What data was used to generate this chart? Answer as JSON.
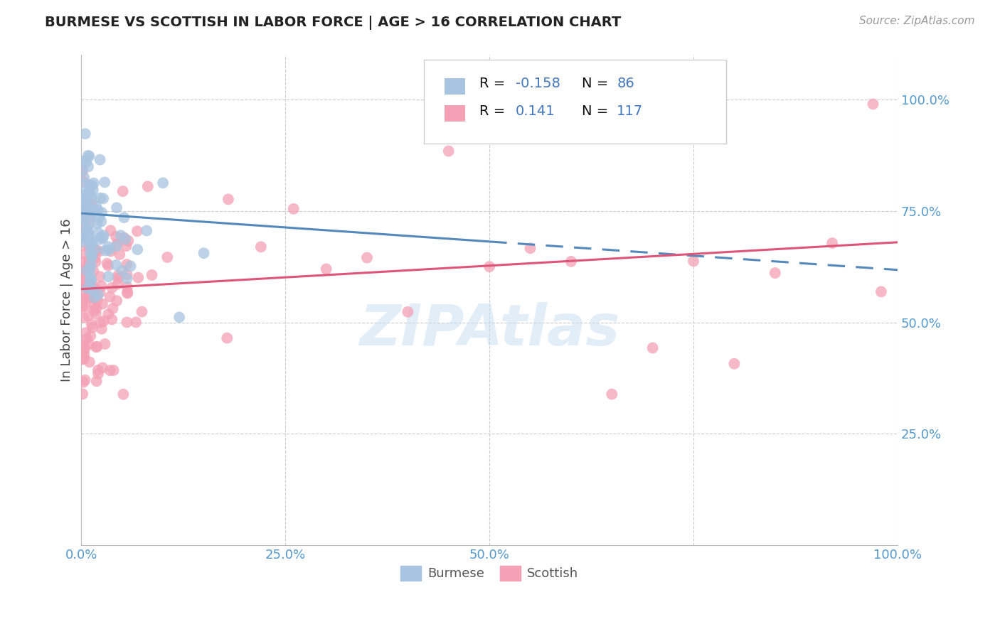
{
  "title": "BURMESE VS SCOTTISH IN LABOR FORCE | AGE > 16 CORRELATION CHART",
  "source": "Source: ZipAtlas.com",
  "ylabel": "In Labor Force | Age > 16",
  "watermark": "ZIPAtlas",
  "burmese_R": -0.158,
  "burmese_N": 86,
  "scottish_R": 0.141,
  "scottish_N": 117,
  "burmese_color": "#a8c4e0",
  "scottish_color": "#f4a0b5",
  "burmese_line_color": "#5588bb",
  "scottish_line_color": "#dd5577",
  "title_color": "#222222",
  "axis_tick_color": "#5599cc",
  "legend_blue_color": "#4477bb",
  "legend_black_color": "#111111",
  "background_color": "#ffffff",
  "grid_color": "#cccccc",
  "burmese_line_start_y": 0.745,
  "burmese_line_end_y": 0.618,
  "scottish_line_start_y": 0.575,
  "scottish_line_end_y": 0.68,
  "xlim": [
    0.0,
    1.0
  ],
  "ylim": [
    0.0,
    1.1
  ],
  "xticks": [
    0.0,
    0.25,
    0.5,
    0.75,
    1.0
  ],
  "xtick_labels": [
    "0.0%",
    "25.0%",
    "50.0%",
    "",
    "100.0%"
  ],
  "ytick_vals": [
    0.25,
    0.5,
    0.75,
    1.0
  ],
  "ytick_labels": [
    "25.0%",
    "50.0%",
    "75.0%",
    "100.0%"
  ]
}
